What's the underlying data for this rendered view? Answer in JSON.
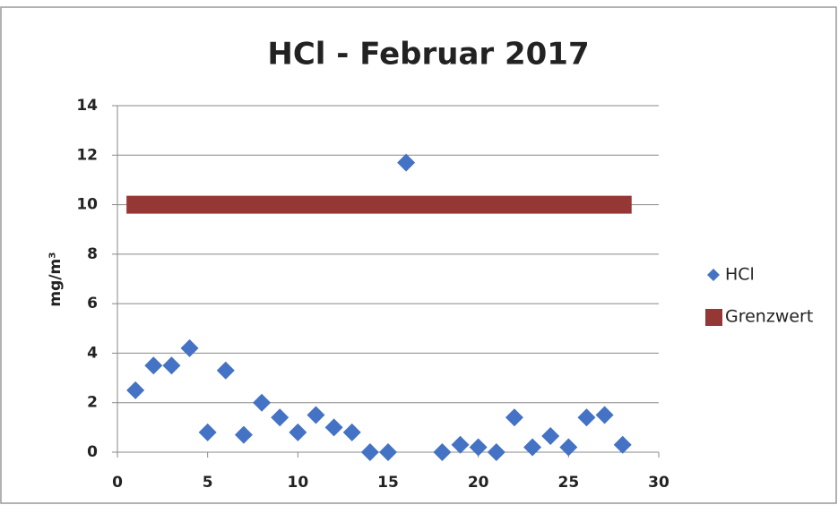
{
  "chart_data": {
    "type": "scatter",
    "title": "HCl -  Februar 2017",
    "ylabel": "mg/m³",
    "series": [
      {
        "name": "HCl",
        "color": "#4472c4",
        "marker": "diamond",
        "x": [
          1,
          2,
          3,
          4,
          5,
          6,
          7,
          8,
          9,
          10,
          11,
          12,
          13,
          14,
          15,
          16,
          17,
          18,
          19,
          20,
          21,
          22,
          23,
          24,
          25,
          26,
          27,
          28
        ],
        "values": [
          2.5,
          3.5,
          3.5,
          4.2,
          0.8,
          3.3,
          0.7,
          2.0,
          1.4,
          0.8,
          1.5,
          1.0,
          0.8,
          0,
          0,
          11.7,
          null,
          0,
          0.3,
          0.2,
          0,
          1.4,
          0.2,
          0.65,
          0.2,
          1.4,
          1.5,
          0.3
        ]
      },
      {
        "name": "Grenzwert",
        "color": "#953735",
        "marker": "line",
        "x": [
          1,
          28
        ],
        "values": [
          10,
          10
        ]
      }
    ],
    "xlim": [
      0,
      30
    ],
    "xticks": [
      0,
      5,
      10,
      15,
      20,
      25,
      30
    ],
    "ylim": [
      0,
      14
    ],
    "yticks": [
      0,
      2,
      4,
      6,
      8,
      10,
      12,
      14
    ],
    "grid": true,
    "legend": "right"
  }
}
